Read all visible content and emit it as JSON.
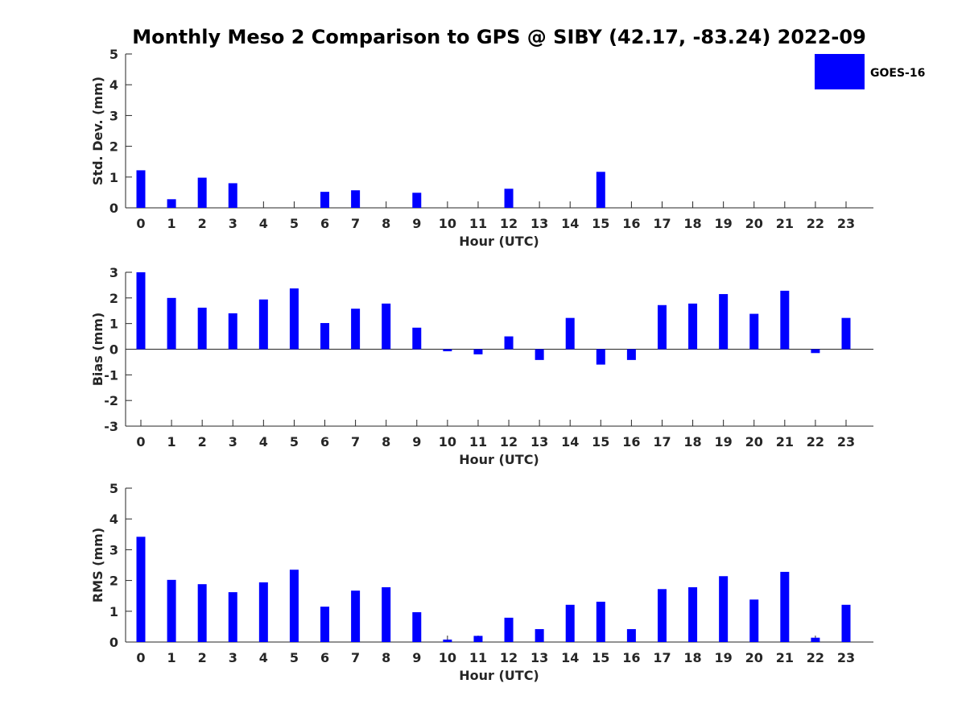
{
  "title": "Monthly Meso 2 Comparison to GPS @ SIBY (42.17, -83.24) 2022-09",
  "legend": {
    "label": "GOES-16",
    "placement": "top-right",
    "color": "#0000ff"
  },
  "chart_data": [
    {
      "type": "bar",
      "ylabel": "Std. Dev. (mm)",
      "xlabel": "Hour (UTC)",
      "categories": [
        "0",
        "1",
        "2",
        "3",
        "4",
        "5",
        "6",
        "7",
        "8",
        "9",
        "10",
        "11",
        "12",
        "13",
        "14",
        "15",
        "16",
        "17",
        "18",
        "19",
        "20",
        "21",
        "22",
        "23"
      ],
      "ylim": [
        0,
        5
      ],
      "yticks": [
        0,
        1,
        2,
        3,
        4,
        5
      ],
      "series": [
        {
          "name": "GOES-16",
          "color": "#0000ff",
          "values": [
            1.22,
            0.28,
            0.98,
            0.8,
            0,
            0,
            0.52,
            0.57,
            0,
            0.49,
            0,
            0,
            0.62,
            0,
            0,
            1.17,
            0,
            0,
            0,
            0,
            0,
            0,
            0,
            0
          ]
        }
      ]
    },
    {
      "type": "bar",
      "ylabel": "Bias (mm)",
      "xlabel": "Hour (UTC)",
      "categories": [
        "0",
        "1",
        "2",
        "3",
        "4",
        "5",
        "6",
        "7",
        "8",
        "9",
        "10",
        "11",
        "12",
        "13",
        "14",
        "15",
        "16",
        "17",
        "18",
        "19",
        "20",
        "21",
        "22",
        "23"
      ],
      "ylim": [
        -3,
        3
      ],
      "yticks": [
        -3,
        -2,
        -1,
        0,
        1,
        2,
        3
      ],
      "series": [
        {
          "name": "GOES-16",
          "color": "#0000ff",
          "values": [
            3.0,
            2.0,
            1.62,
            1.4,
            1.94,
            2.37,
            1.02,
            1.58,
            1.78,
            0.84,
            -0.08,
            -0.2,
            0.5,
            -0.42,
            1.22,
            -0.6,
            -0.42,
            1.72,
            1.78,
            2.15,
            1.38,
            2.28,
            -0.15,
            1.22
          ]
        }
      ]
    },
    {
      "type": "bar",
      "ylabel": "RMS (mm)",
      "xlabel": "Hour (UTC)",
      "categories": [
        "0",
        "1",
        "2",
        "3",
        "4",
        "5",
        "6",
        "7",
        "8",
        "9",
        "10",
        "11",
        "12",
        "13",
        "14",
        "15",
        "16",
        "17",
        "18",
        "19",
        "20",
        "21",
        "22",
        "23"
      ],
      "ylim": [
        0,
        5
      ],
      "yticks": [
        0,
        1,
        2,
        3,
        4,
        5
      ],
      "series": [
        {
          "name": "GOES-16",
          "color": "#0000ff",
          "values": [
            3.42,
            2.02,
            1.88,
            1.62,
            1.94,
            2.35,
            1.15,
            1.67,
            1.78,
            0.97,
            0.08,
            0.2,
            0.79,
            0.42,
            1.21,
            1.31,
            0.42,
            1.72,
            1.78,
            2.14,
            1.38,
            2.28,
            0.14,
            1.21
          ]
        }
      ]
    }
  ]
}
